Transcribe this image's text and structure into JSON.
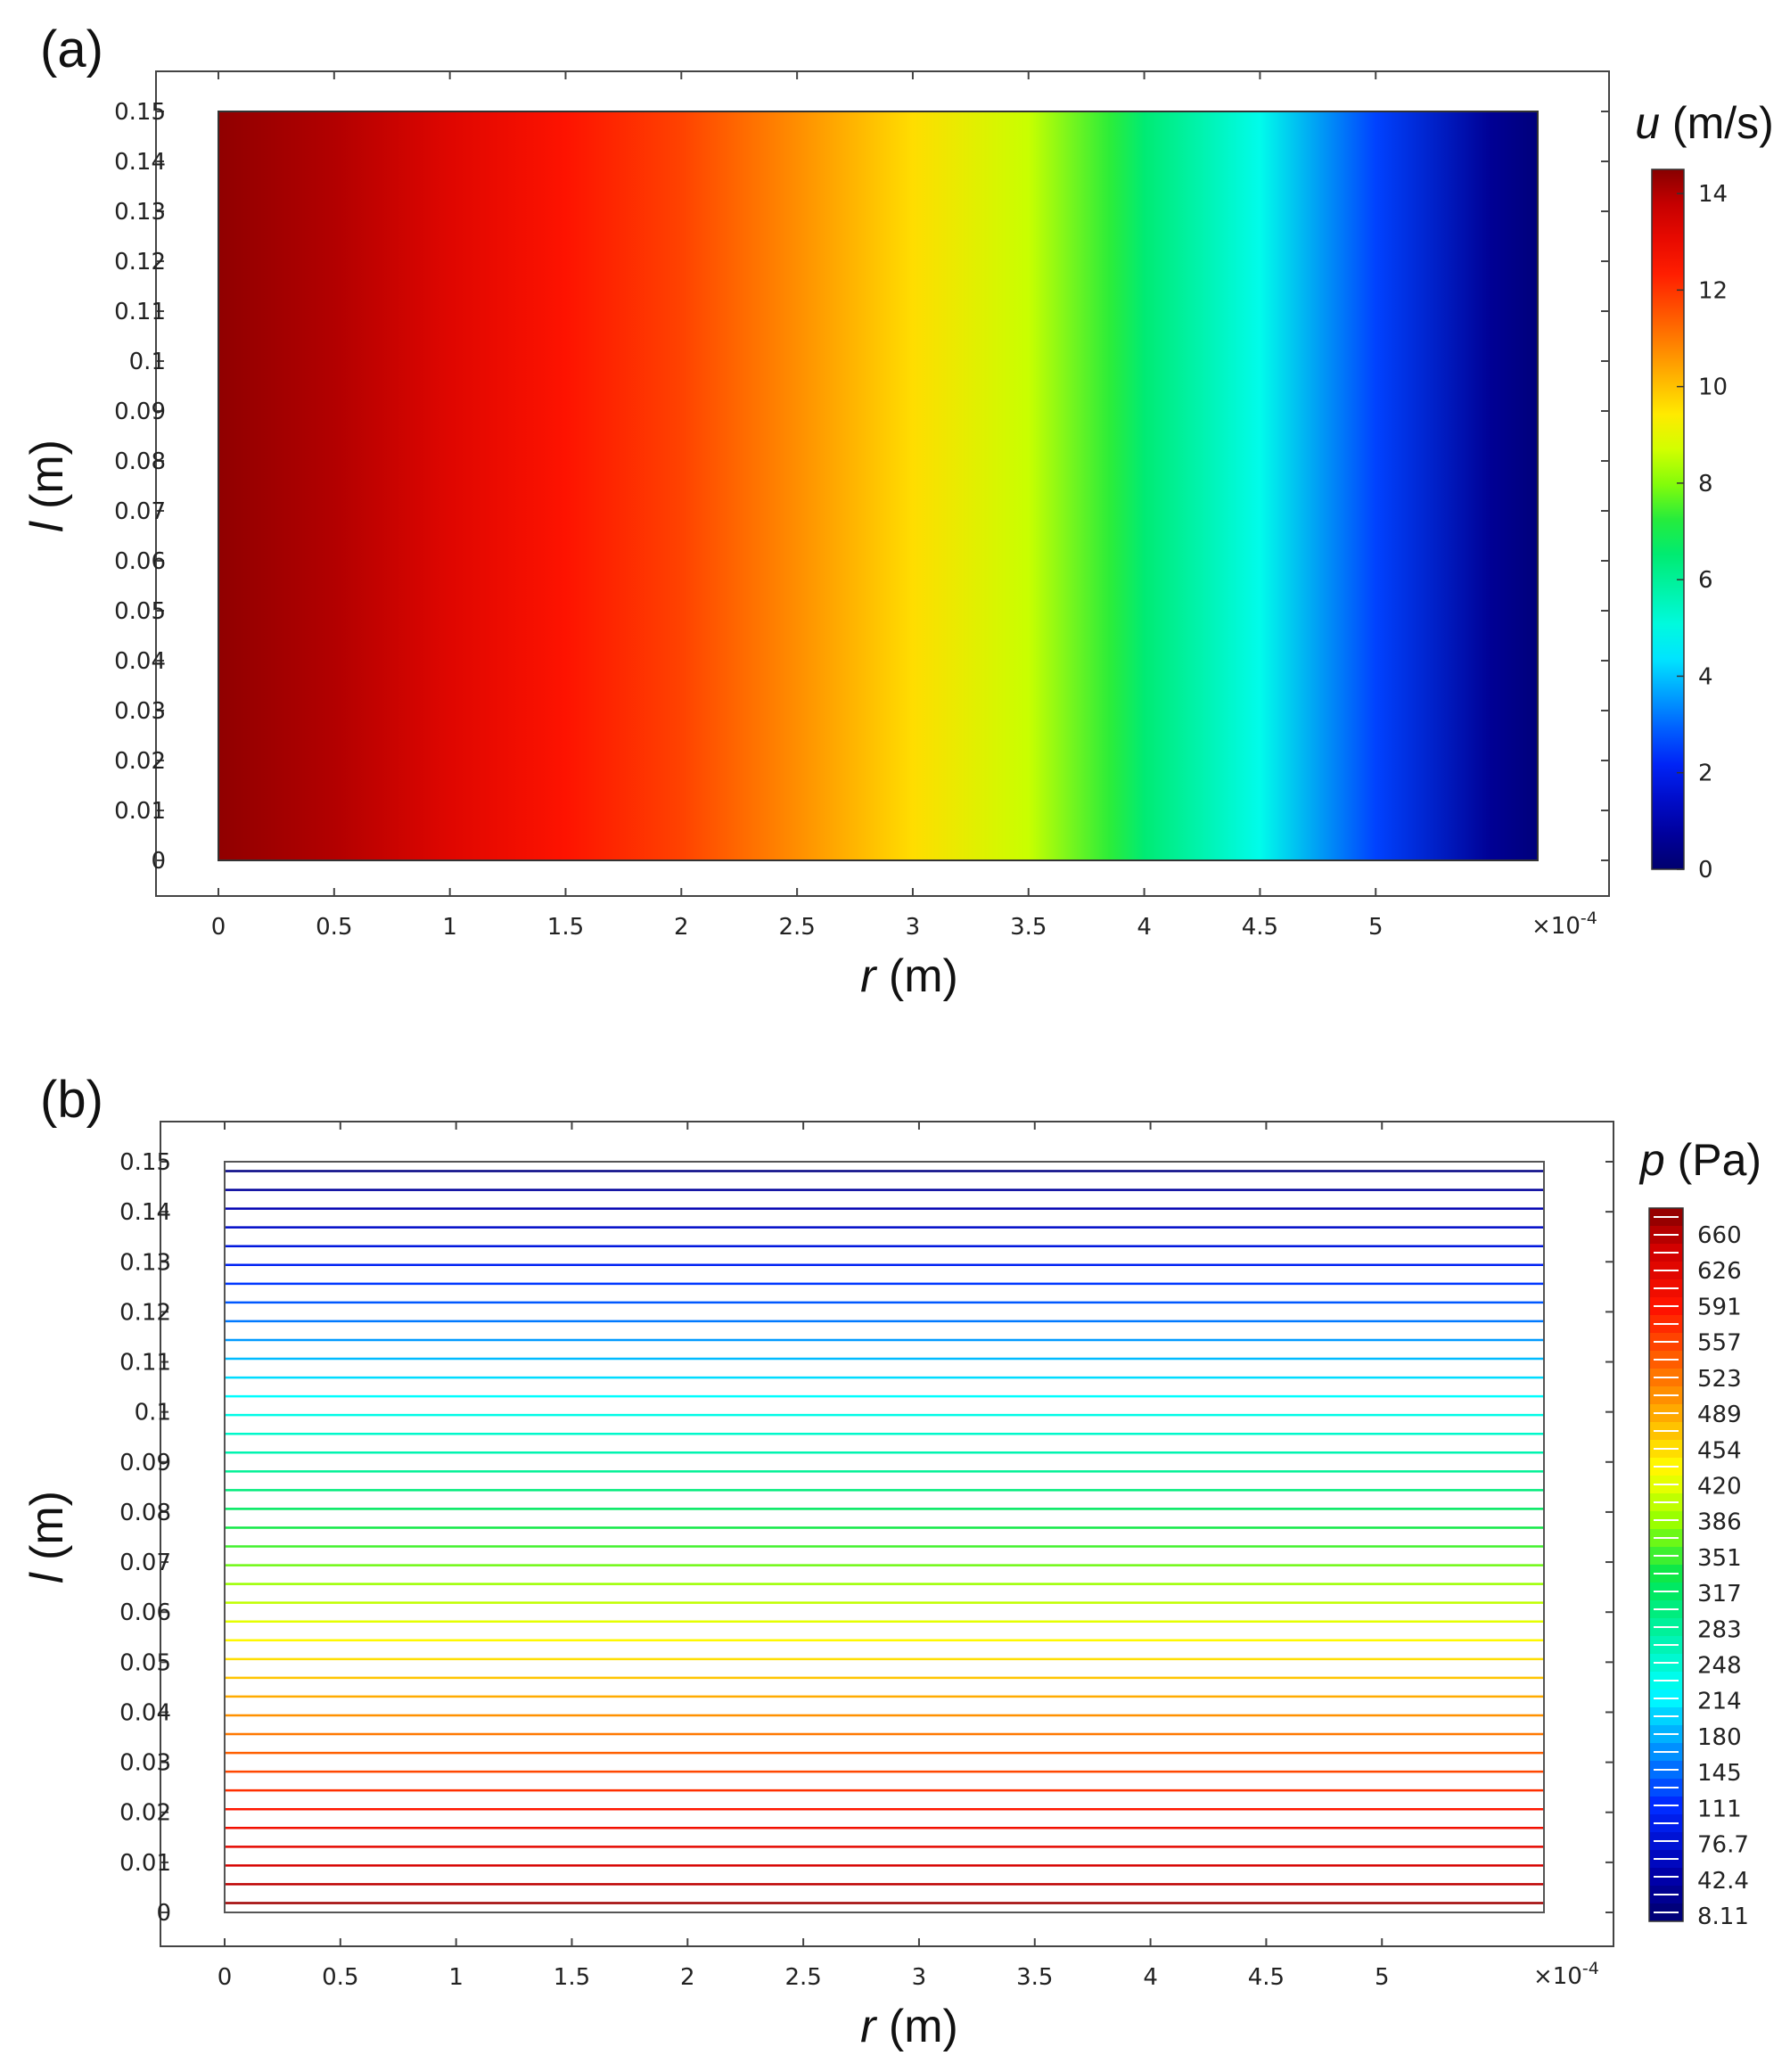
{
  "chart_data": [
    {
      "panel": "(a)",
      "type": "heatmap",
      "description_of_field": "u varies with r only (uniform along l)",
      "x": {
        "label_var": "r",
        "label_unit": " (m)",
        "range": [
          0,
          5.7
        ],
        "ticks": [
          "0",
          "0.5",
          "1",
          "1.5",
          "2",
          "2.5",
          "3",
          "3.5",
          "4",
          "4.5",
          "5"
        ],
        "tick_values": [
          0,
          0.5,
          1,
          1.5,
          2,
          2.5,
          3,
          3.5,
          4,
          4.5,
          5
        ],
        "multiplier": "×10",
        "multiplier_exp": "-4"
      },
      "y": {
        "label_var": "l",
        "label_unit": " (m)",
        "range": [
          0,
          0.15
        ],
        "ticks": [
          "0",
          "0.01",
          "0.02",
          "0.03",
          "0.04",
          "0.05",
          "0.06",
          "0.07",
          "0.08",
          "0.09",
          "0.1",
          "0.11",
          "0.12",
          "0.13",
          "0.14",
          "0.15"
        ],
        "tick_values": [
          0,
          0.01,
          0.02,
          0.03,
          0.04,
          0.05,
          0.06,
          0.07,
          0.08,
          0.09,
          0.1,
          0.11,
          0.12,
          0.13,
          0.14,
          0.15
        ]
      },
      "colorbar": {
        "var": "u",
        "unit": " (m/s)",
        "range": [
          0,
          14.5
        ],
        "ticks": [
          "0",
          "2",
          "4",
          "6",
          "8",
          "10",
          "12",
          "14"
        ],
        "tick_values": [
          0,
          2,
          4,
          6,
          8,
          10,
          12,
          14
        ],
        "colormap": "rainbow"
      },
      "profile": {
        "r": [
          0,
          0.5,
          1,
          1.5,
          2,
          2.5,
          3,
          3.5,
          3.85,
          4,
          4.5,
          5,
          5.5,
          5.7
        ],
        "u": [
          14.4,
          14.0,
          13.3,
          12.5,
          11.8,
          10.7,
          9.6,
          8.6,
          7.3,
          6.5,
          4.9,
          2.6,
          0.6,
          0.2
        ]
      }
    },
    {
      "panel": "(b)",
      "type": "contour",
      "description_of_field": "p varies with l only (horizontal contour lines)",
      "x": {
        "label_var": "r",
        "label_unit": " (m)",
        "range": [
          0,
          5.7
        ],
        "ticks": [
          "0",
          "0.5",
          "1",
          "1.5",
          "2",
          "2.5",
          "3",
          "3.5",
          "4",
          "4.5",
          "5"
        ],
        "tick_values": [
          0,
          0.5,
          1,
          1.5,
          2,
          2.5,
          3,
          3.5,
          4,
          4.5,
          5
        ],
        "multiplier": "×10",
        "multiplier_exp": "-4"
      },
      "y": {
        "label_var": "l",
        "label_unit": " (m)",
        "range": [
          0,
          0.15
        ],
        "ticks": [
          "0",
          "0.01",
          "0.02",
          "0.03",
          "0.04",
          "0.05",
          "0.06",
          "0.07",
          "0.08",
          "0.09",
          "0.1",
          "0.11",
          "0.12",
          "0.13",
          "0.14",
          "0.15"
        ],
        "tick_values": [
          0,
          0.01,
          0.02,
          0.03,
          0.04,
          0.05,
          0.06,
          0.07,
          0.08,
          0.09,
          0.1,
          0.11,
          0.12,
          0.13,
          0.14,
          0.15
        ]
      },
      "colorbar": {
        "var": "p",
        "unit": " (Pa)",
        "range": [
          0,
          680
        ],
        "ticks": [
          "660",
          "626",
          "591",
          "557",
          "523",
          "489",
          "454",
          "420",
          "386",
          "351",
          "317",
          "283",
          "248",
          "214",
          "180",
          "145",
          "111",
          "76.7",
          "42.4",
          "8.11"
        ],
        "tick_values": [
          660,
          626,
          591,
          557,
          523,
          489,
          454,
          420,
          386,
          351,
          317,
          283,
          248,
          214,
          180,
          145,
          111,
          76.7,
          42.4,
          8.11
        ],
        "colormap": "rainbow"
      },
      "contour_levels": {
        "count": 40,
        "p_at_l0": 675,
        "p_at_l015": 8.11
      }
    }
  ]
}
